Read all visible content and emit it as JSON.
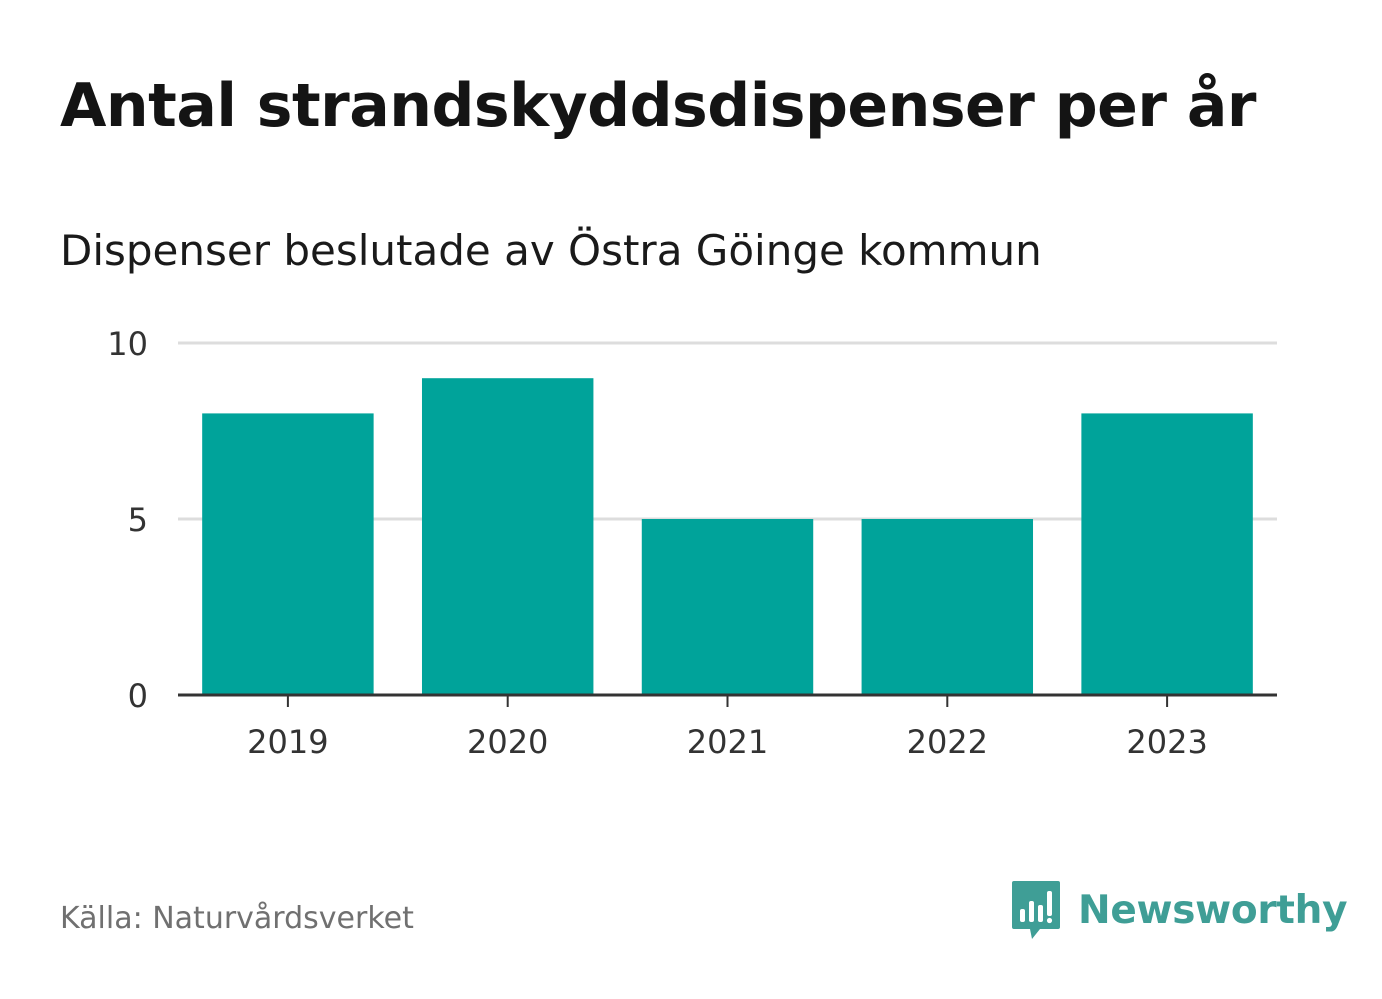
{
  "header": {
    "title": "Antal strandskyddsdispenser per år",
    "subtitle": "Dispenser beslutade av Östra Göinge kommun"
  },
  "footer": {
    "source": "Källa: Naturvårdsverket",
    "brand": "Newsworthy"
  },
  "colors": {
    "bar": "#00a39a",
    "grid": "#dddddd",
    "axis": "#333333",
    "brand": "#3f9e96"
  },
  "chart_data": {
    "type": "bar",
    "title": "Antal strandskyddsdispenser per år",
    "subtitle": "Dispenser beslutade av Östra Göinge kommun",
    "categories": [
      "2019",
      "2020",
      "2021",
      "2022",
      "2023"
    ],
    "values": [
      8,
      9,
      5,
      5,
      8
    ],
    "xlabel": "",
    "ylabel": "",
    "ylim": [
      0,
      10
    ],
    "yticks": [
      0,
      5,
      10
    ],
    "grid": true,
    "legend": "none"
  }
}
